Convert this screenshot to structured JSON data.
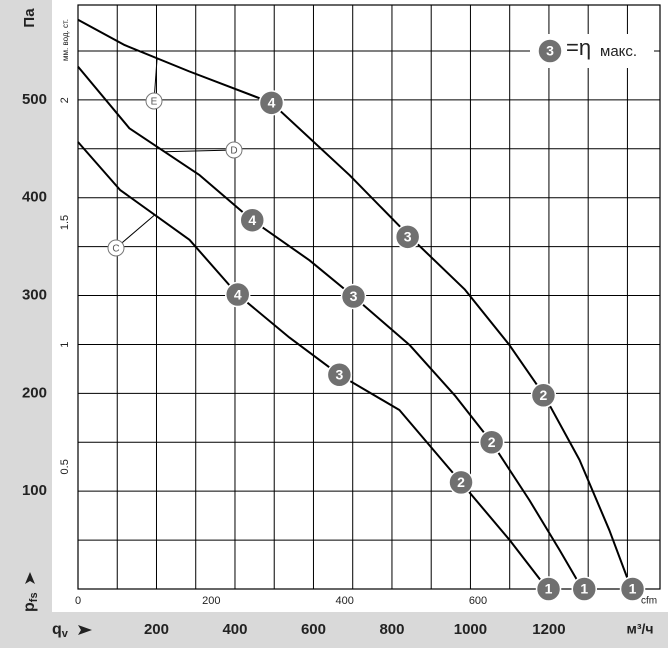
{
  "chart_data": {
    "type": "line",
    "y_unit": "Па",
    "y2_unit": "мм. вод. ст.",
    "y_symbol": "p",
    "y_symbol_sub": "fs",
    "x_symbol": "q",
    "x_symbol_sub": "v",
    "x_unit": "м³/ч",
    "x2_unit": "cfm",
    "legend": {
      "marker": "3",
      "symbol": "=η",
      "text": "макс."
    },
    "xlim": [
      0,
      1483
    ],
    "xticks": [
      200,
      400,
      600,
      800,
      1000,
      1200
    ],
    "x2lim": [
      0,
      873
    ],
    "x2ticks": [
      0,
      200,
      400,
      600
    ],
    "ylim": [
      0,
      597
    ],
    "yticks": [
      100,
      200,
      300,
      400,
      500
    ],
    "y2lim": [
      0,
      2.39
    ],
    "y2ticks": [
      0.5,
      1,
      1.5,
      2
    ],
    "xgrid_step": 100,
    "ygrid_step": 50,
    "grid": true,
    "series": [
      {
        "name": "E",
        "color": "#000000",
        "x": [
          0,
          119,
          284,
          493,
          692,
          846,
          986,
          1100,
          1188,
          1278,
          1354,
          1410
        ],
        "values": [
          582,
          556,
          529,
          497,
          423,
          360,
          306,
          249,
          198,
          132,
          60,
          0
        ],
        "points": [
          {
            "label": "4",
            "x": 493,
            "y": 497
          },
          {
            "label": "3",
            "x": 840,
            "y": 360
          },
          {
            "label": "2",
            "x": 1186,
            "y": 198
          },
          {
            "label": "1",
            "x": 1413,
            "y": 0
          }
        ]
      },
      {
        "name": "D",
        "color": "#000000",
        "x": [
          0,
          131,
          310,
          444,
          590,
          702,
          846,
          960,
          1054,
          1150,
          1227,
          1285
        ],
        "values": [
          534,
          471,
          423,
          377,
          336,
          299,
          249,
          198,
          150,
          91,
          40,
          0
        ],
        "points": [
          {
            "label": "4",
            "x": 444,
            "y": 377
          },
          {
            "label": "3",
            "x": 702,
            "y": 299
          },
          {
            "label": "2",
            "x": 1054,
            "y": 150
          },
          {
            "label": "1",
            "x": 1290,
            "y": 0
          }
        ]
      },
      {
        "name": "C",
        "color": "#000000",
        "x": [
          0,
          107,
          284,
          407,
          539,
          666,
          819,
          976,
          1100,
          1196
        ],
        "values": [
          457,
          408,
          357,
          301,
          257,
          219,
          183,
          109,
          50,
          0
        ],
        "points": [
          {
            "label": "4",
            "x": 407,
            "y": 301
          },
          {
            "label": "3",
            "x": 666,
            "y": 219
          },
          {
            "label": "2",
            "x": 976,
            "y": 109
          },
          {
            "label": "1",
            "x": 1199,
            "y": 0
          }
        ]
      }
    ]
  }
}
